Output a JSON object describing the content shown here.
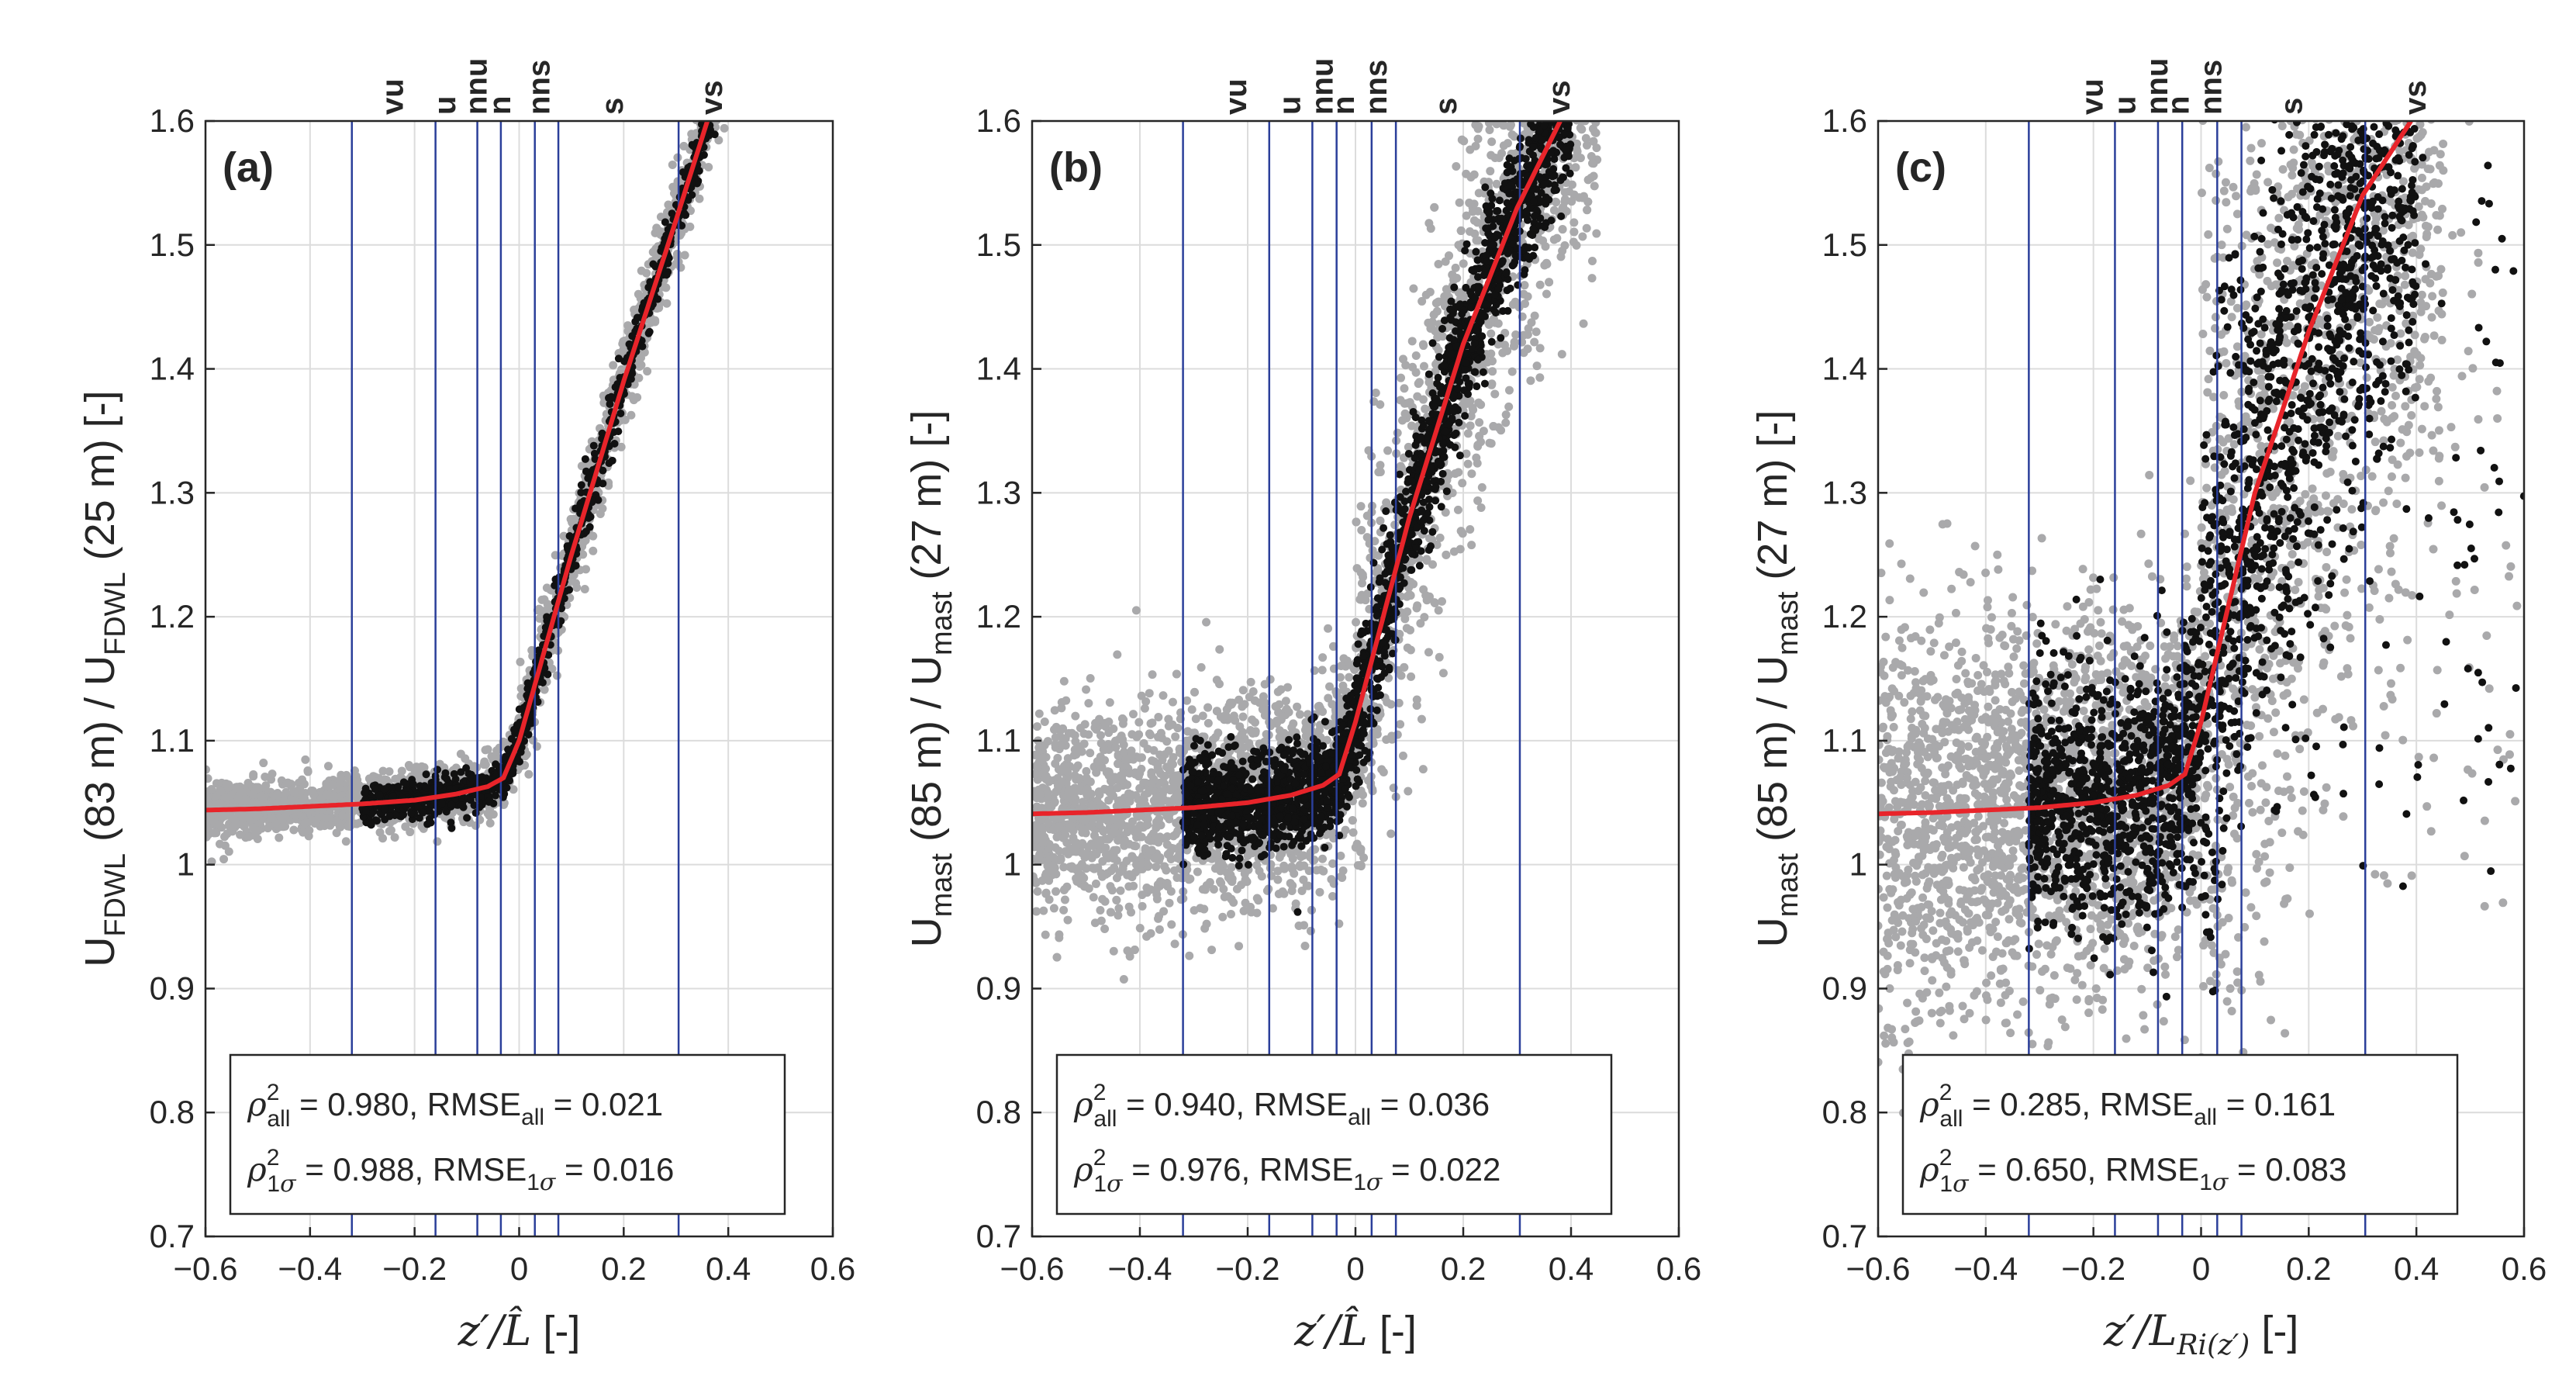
{
  "figure": {
    "description_note": "Three scatter panels of wind speed ratio versus stability parameter"
  },
  "colors": {
    "all_points": "#a9a9ab",
    "one_sigma_points": "#111111",
    "fit_line": "#e8242a",
    "class_lines": "#2b3f9a",
    "grid": "#dcdcdc",
    "axis": "#262626"
  },
  "chart_data": [
    {
      "type": "scatter",
      "panel_label": "(a)",
      "ylabel_prefix": "U",
      "ylabel_sub1": "FDWL",
      "ylabel_mid": " (83 m) / U",
      "ylabel_sub2": "FDWL",
      "ylabel_suffix": " (25 m) [-]",
      "xlabel_main": "z′/L̂",
      "xlabel_sub": "",
      "xlabel_unit": " [-]",
      "xlim": [
        -0.6,
        0.6
      ],
      "ylim": [
        0.7,
        1.6
      ],
      "xticks": [
        -0.6,
        -0.4,
        -0.2,
        0,
        0.2,
        0.4,
        0.6
      ],
      "xtick_labels": [
        "−0.6",
        "−0.4",
        "−0.2",
        "0",
        "0.2",
        "0.4",
        "0.6"
      ],
      "yticks": [
        0.7,
        0.8,
        0.9,
        1.0,
        1.1,
        1.2,
        1.3,
        1.4,
        1.5,
        1.6
      ],
      "ytick_labels": [
        "0.7",
        "0.8",
        "0.9",
        "1",
        "1.1",
        "1.2",
        "1.3",
        "1.4",
        "1.5",
        "1.6"
      ],
      "grid": true,
      "stability_lines_x": [
        -0.32,
        -0.16,
        -0.08,
        -0.035,
        0.03,
        0.075,
        0.305
      ],
      "stability_labels": [
        {
          "text": "vu",
          "x": -0.24
        },
        {
          "text": "u",
          "x": -0.14
        },
        {
          "text": "nnu",
          "x": -0.08
        },
        {
          "text": "n",
          "x": -0.035
        },
        {
          "text": "nns",
          "x": 0.04
        },
        {
          "text": "s",
          "x": 0.18
        },
        {
          "text": "vs",
          "x": 0.37
        }
      ],
      "fit": {
        "x": [
          -0.6,
          -0.5,
          -0.4,
          -0.3,
          -0.2,
          -0.12,
          -0.06,
          -0.03,
          0.0,
          0.1,
          0.2,
          0.3,
          0.36
        ],
        "y": [
          1.044,
          1.045,
          1.047,
          1.049,
          1.052,
          1.057,
          1.063,
          1.07,
          1.1,
          1.25,
          1.39,
          1.52,
          1.6
        ]
      },
      "scatter_spread": {
        "all": 0.012,
        "sigma": 0.008,
        "outliers": 0.0
      },
      "stats": {
        "rho_all": "= 0.980,",
        "rmse_all": "= 0.021",
        "rho_1s": "= 0.988,",
        "rmse_1s": "= 0.016"
      }
    },
    {
      "type": "scatter",
      "panel_label": "(b)",
      "ylabel_prefix": "U",
      "ylabel_sub1": "mast",
      "ylabel_mid": " (85 m) / U",
      "ylabel_sub2": "mast",
      "ylabel_suffix": " (27 m) [-]",
      "xlabel_main": "z′/L̂",
      "xlabel_sub": "",
      "xlabel_unit": " [-]",
      "xlim": [
        -0.6,
        0.6
      ],
      "ylim": [
        0.7,
        1.6
      ],
      "xticks": [
        -0.6,
        -0.4,
        -0.2,
        0,
        0.2,
        0.4,
        0.6
      ],
      "xtick_labels": [
        "−0.6",
        "−0.4",
        "−0.2",
        "0",
        "0.2",
        "0.4",
        "0.6"
      ],
      "yticks": [
        0.7,
        0.8,
        0.9,
        1.0,
        1.1,
        1.2,
        1.3,
        1.4,
        1.5,
        1.6
      ],
      "ytick_labels": [
        "0.7",
        "0.8",
        "0.9",
        "1",
        "1.1",
        "1.2",
        "1.3",
        "1.4",
        "1.5",
        "1.6"
      ],
      "grid": true,
      "stability_lines_x": [
        -0.32,
        -0.16,
        -0.08,
        -0.035,
        0.03,
        0.075,
        0.305
      ],
      "stability_labels": [
        {
          "text": "vu",
          "x": -0.22
        },
        {
          "text": "u",
          "x": -0.12
        },
        {
          "text": "nnu",
          "x": -0.06
        },
        {
          "text": "n",
          "x": -0.02
        },
        {
          "text": "nns",
          "x": 0.04
        },
        {
          "text": "s",
          "x": 0.17
        },
        {
          "text": "vs",
          "x": 0.38
        }
      ],
      "fit": {
        "x": [
          -0.6,
          -0.5,
          -0.4,
          -0.3,
          -0.2,
          -0.12,
          -0.06,
          -0.03,
          0.0,
          0.1,
          0.2,
          0.3,
          0.38
        ],
        "y": [
          1.041,
          1.042,
          1.044,
          1.046,
          1.05,
          1.056,
          1.064,
          1.073,
          1.115,
          1.28,
          1.42,
          1.53,
          1.6
        ]
      },
      "scatter_spread": {
        "all": 0.045,
        "sigma": 0.02,
        "outliers": 0.0
      },
      "stats": {
        "rho_all": "= 0.940,",
        "rmse_all": "= 0.036",
        "rho_1s": "= 0.976,",
        "rmse_1s": "= 0.022"
      }
    },
    {
      "type": "scatter",
      "panel_label": "(c)",
      "ylabel_prefix": "U",
      "ylabel_sub1": "mast",
      "ylabel_mid": " (85 m) / U",
      "ylabel_sub2": "mast",
      "ylabel_suffix": " (27 m) [-]",
      "xlabel_main": "z′/L",
      "xlabel_sub": "Ri(z′)",
      "xlabel_unit": " [-]",
      "xlim": [
        -0.6,
        0.6
      ],
      "ylim": [
        0.7,
        1.6
      ],
      "xticks": [
        -0.6,
        -0.4,
        -0.2,
        0,
        0.2,
        0.4,
        0.6
      ],
      "xtick_labels": [
        "−0.6",
        "−0.4",
        "−0.2",
        "0",
        "0.2",
        "0.4",
        "0.6"
      ],
      "yticks": [
        0.7,
        0.8,
        0.9,
        1.0,
        1.1,
        1.2,
        1.3,
        1.4,
        1.5,
        1.6
      ],
      "ytick_labels": [
        "0.7",
        "0.8",
        "0.9",
        "1",
        "1.1",
        "1.2",
        "1.3",
        "1.4",
        "1.5",
        "1.6"
      ],
      "grid": true,
      "stability_lines_x": [
        -0.32,
        -0.16,
        -0.08,
        -0.035,
        0.03,
        0.075,
        0.305
      ],
      "stability_labels": [
        {
          "text": "vu",
          "x": -0.2
        },
        {
          "text": "u",
          "x": -0.14
        },
        {
          "text": "nnu",
          "x": -0.08
        },
        {
          "text": "n",
          "x": -0.04
        },
        {
          "text": "nns",
          "x": 0.02
        },
        {
          "text": "s",
          "x": 0.17
        },
        {
          "text": "vs",
          "x": 0.4
        }
      ],
      "fit": {
        "x": [
          -0.6,
          -0.5,
          -0.4,
          -0.3,
          -0.2,
          -0.12,
          -0.06,
          -0.03,
          0.0,
          0.1,
          0.2,
          0.3,
          0.39
        ],
        "y": [
          1.041,
          1.042,
          1.044,
          1.046,
          1.05,
          1.056,
          1.064,
          1.073,
          1.115,
          1.3,
          1.43,
          1.54,
          1.6
        ]
      },
      "scatter_spread": {
        "all": 0.08,
        "sigma": 0.05,
        "outliers": 0.25
      },
      "stats": {
        "rho_all": "= 0.285,",
        "rmse_all": "= 0.161",
        "rho_1s": "= 0.650,",
        "rmse_1s": "= 0.083"
      }
    }
  ]
}
